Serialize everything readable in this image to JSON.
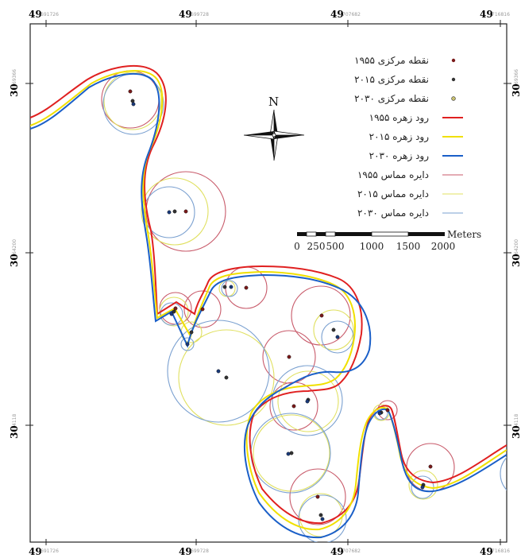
{
  "top_ticks": [
    {
      "major": "49",
      "minor": "691726"
    },
    {
      "major": "49",
      "minor": "699728"
    },
    {
      "major": "49",
      "minor": "707682"
    },
    {
      "major": "49",
      "minor": "716816"
    }
  ],
  "bottom_ticks": [
    {
      "major": "49",
      "minor": "691726"
    },
    {
      "major": "49",
      "minor": "699728"
    },
    {
      "major": "49",
      "minor": "707682"
    },
    {
      "major": "49",
      "minor": "716816"
    }
  ],
  "left_ticks": [
    {
      "major": "30",
      "minor": "69366"
    },
    {
      "major": "30",
      "minor": "64200"
    },
    {
      "major": "30",
      "minor": "4118"
    }
  ],
  "right_ticks": [
    {
      "major": "30",
      "minor": "69366"
    },
    {
      "major": "30",
      "minor": "64200"
    },
    {
      "major": "30",
      "minor": "4118"
    }
  ],
  "north_label": "N",
  "legend": [
    {
      "label": "نقطه مرکزی ۱۹۵۵",
      "type": "point",
      "color": "#7a1a1a"
    },
    {
      "label": "نقطه مرکزی ۲۰۱۵",
      "type": "point",
      "color": "#333333"
    },
    {
      "label": "نقطه مرکزی ۲۰۳۰",
      "type": "point",
      "color": "#7a6a1a"
    },
    {
      "label": "رود زهره ۱۹۵۵",
      "type": "line",
      "color": "#e02020"
    },
    {
      "label": "رود زهره ۲۰۱۵",
      "type": "line",
      "color": "#f0e000"
    },
    {
      "label": "رود زهره ۲۰۳۰",
      "type": "line",
      "color": "#1a5fc8"
    },
    {
      "label": "دایره مماس ۱۹۵۵",
      "type": "circle",
      "color": "#c85a6a"
    },
    {
      "label": "دایره مماس ۲۰۱۵",
      "type": "circle",
      "color": "#e0e060"
    },
    {
      "label": "دایره مماس ۲۰۳۰",
      "type": "circle",
      "color": "#7aa0d0"
    }
  ],
  "scale": {
    "unit": "Meters",
    "labels": [
      "0",
      "250",
      "500",
      "1000",
      "1500",
      "2000"
    ]
  },
  "colors": {
    "river1955": "#e02020",
    "river2015": "#f0e000",
    "river2030": "#1a5fc8",
    "circle1955": "#c85a6a",
    "circle2015": "#e0e060",
    "circle2030": "#7aa0d0"
  }
}
